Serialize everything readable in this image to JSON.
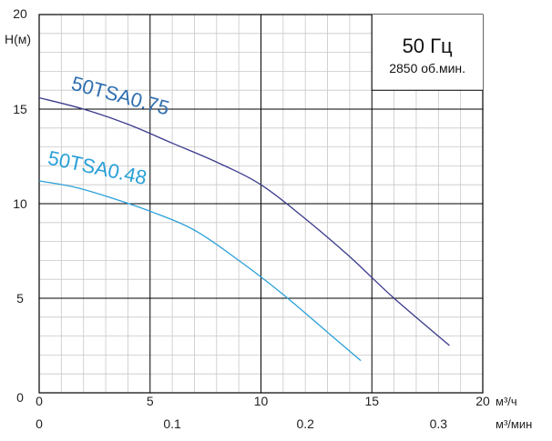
{
  "chart_data": {
    "type": "line",
    "ylabel": "H(м)",
    "xlabel": "м³/ч",
    "x2label": "м³/мин",
    "xlim": [
      0,
      20
    ],
    "ylim": [
      0,
      20
    ],
    "x_ticks": [
      0,
      5,
      10,
      15,
      20
    ],
    "x_tick_labels": [
      "0",
      "5",
      "10",
      "15",
      "20"
    ],
    "y_ticks": [
      0,
      5,
      10,
      15,
      20
    ],
    "y_tick_labels": [
      "0",
      "5",
      "10",
      "15",
      "20"
    ],
    "x2_ticks": [
      0,
      0.1,
      0.2,
      0.3
    ],
    "x2_tick_labels": [
      "0",
      "0.1",
      "0.2",
      "0.3"
    ],
    "x2_factor": 60,
    "grid": true,
    "infobox": {
      "title": "50 Гц",
      "subtitle": "2850 об.мин."
    },
    "series": [
      {
        "name": "50TSA0.75",
        "color": "#3a3b8c",
        "label_color": "#2f6fb0",
        "x": [
          0,
          2,
          4,
          6,
          8,
          10,
          12,
          14,
          16,
          18.5
        ],
        "y": [
          15.6,
          15.0,
          14.2,
          13.2,
          12.2,
          11.0,
          9.2,
          7.2,
          5.0,
          2.5
        ]
      },
      {
        "name": "50TSA0.48",
        "color": "#2aa0d8",
        "label_color": "#2aa0d8",
        "x": [
          0,
          1.5,
          3,
          5,
          7,
          9,
          11,
          13,
          14.5
        ],
        "y": [
          11.2,
          10.9,
          10.4,
          9.6,
          8.6,
          7.0,
          5.2,
          3.2,
          1.7
        ]
      }
    ]
  }
}
